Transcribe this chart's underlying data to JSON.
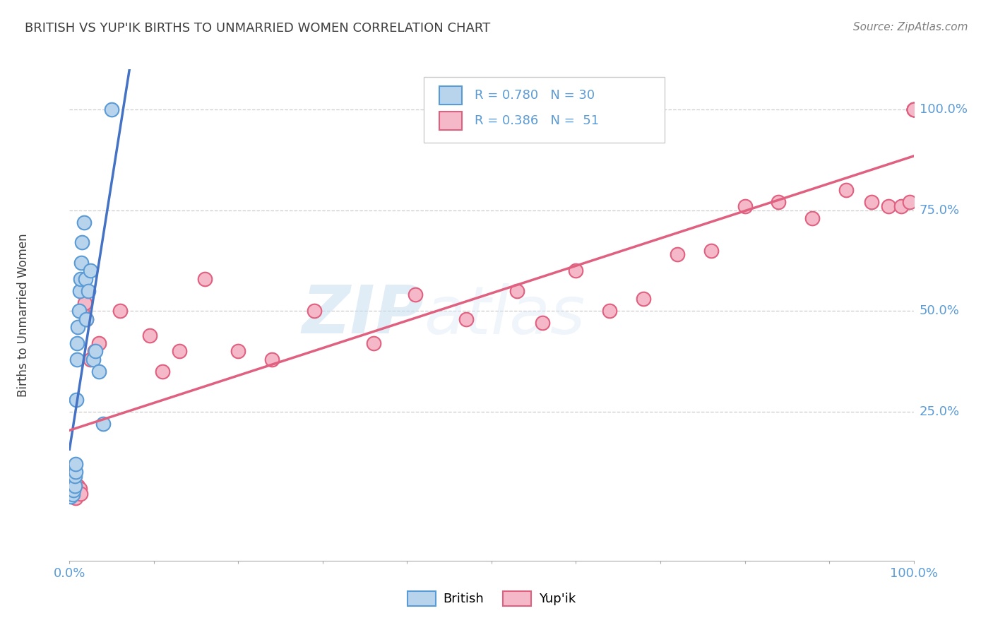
{
  "title": "BRITISH VS YUP'IK BIRTHS TO UNMARRIED WOMEN CORRELATION CHART",
  "source": "Source: ZipAtlas.com",
  "ylabel": "Births to Unmarried Women",
  "watermark_zip": "ZIP",
  "watermark_atlas": "atlas",
  "xlim": [
    0.0,
    1.0
  ],
  "ylim": [
    -0.12,
    1.1
  ],
  "ytick_labels": [
    "25.0%",
    "50.0%",
    "75.0%",
    "100.0%"
  ],
  "ytick_values": [
    0.25,
    0.5,
    0.75,
    1.0
  ],
  "british_fill": "#b8d4ed",
  "british_edge": "#5b9bd5",
  "yupik_fill": "#f5b8c9",
  "yupik_edge": "#e06080",
  "trend_blue": "#4472c4",
  "trend_pink": "#e06080",
  "legend_R_british": "0.780",
  "legend_N_british": "30",
  "legend_R_yupik": "0.386",
  "legend_N_yupik": "51",
  "grid_color": "#cccccc",
  "bg_color": "#ffffff",
  "title_color": "#404040",
  "source_color": "#808080",
  "tick_color": "#5b9bd5",
  "british_x": [
    0.001,
    0.002,
    0.003,
    0.004,
    0.004,
    0.005,
    0.005,
    0.006,
    0.006,
    0.007,
    0.007,
    0.008,
    0.009,
    0.009,
    0.01,
    0.011,
    0.012,
    0.013,
    0.014,
    0.015,
    0.017,
    0.019,
    0.02,
    0.022,
    0.025,
    0.028,
    0.031,
    0.035,
    0.04,
    0.05
  ],
  "british_y": [
    0.04,
    0.05,
    0.06,
    0.045,
    0.07,
    0.055,
    0.08,
    0.065,
    0.09,
    0.1,
    0.12,
    0.28,
    0.38,
    0.42,
    0.46,
    0.5,
    0.55,
    0.58,
    0.62,
    0.67,
    0.72,
    0.58,
    0.48,
    0.55,
    0.6,
    0.38,
    0.4,
    0.35,
    0.22,
    1.0
  ],
  "yupik_x": [
    0.001,
    0.002,
    0.003,
    0.004,
    0.005,
    0.006,
    0.007,
    0.008,
    0.009,
    0.01,
    0.011,
    0.012,
    0.013,
    0.015,
    0.018,
    0.02,
    0.025,
    0.03,
    0.035,
    0.06,
    0.095,
    0.11,
    0.13,
    0.16,
    0.2,
    0.24,
    0.29,
    0.36,
    0.41,
    0.47,
    0.53,
    0.56,
    0.6,
    0.64,
    0.68,
    0.72,
    0.76,
    0.8,
    0.84,
    0.88,
    0.92,
    0.95,
    0.97,
    0.985,
    0.995,
    1.0,
    1.0,
    1.0,
    1.0,
    1.0,
    1.0
  ],
  "yupik_y": [
    0.045,
    0.05,
    0.055,
    0.04,
    0.05,
    0.045,
    0.035,
    0.055,
    0.06,
    0.065,
    0.052,
    0.058,
    0.046,
    0.5,
    0.52,
    0.48,
    0.38,
    0.4,
    0.42,
    0.5,
    0.44,
    0.35,
    0.4,
    0.58,
    0.4,
    0.38,
    0.5,
    0.42,
    0.54,
    0.48,
    0.55,
    0.47,
    0.6,
    0.5,
    0.53,
    0.64,
    0.65,
    0.76,
    0.77,
    0.73,
    0.8,
    0.77,
    0.76,
    0.76,
    0.77,
    1.0,
    1.0,
    1.0,
    1.0,
    1.0,
    1.0
  ]
}
